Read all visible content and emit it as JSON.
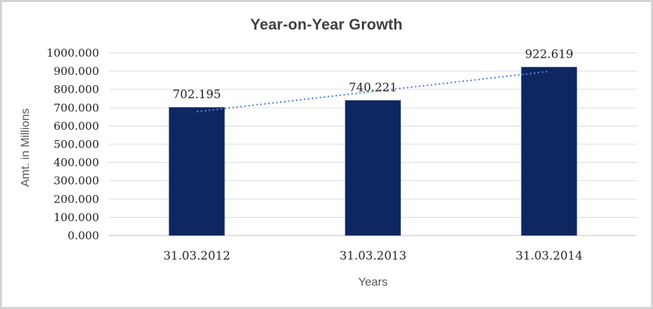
{
  "frame": {
    "border_color": "#D3D3D3",
    "background": "#FFFFFF"
  },
  "chart_data": {
    "type": "bar",
    "title": "Year-on-Year Growth",
    "xlabel": "Years",
    "ylabel": "Amt. in Millions",
    "categories": [
      "31.03.2012",
      "31.03.2013",
      "31.03.2014"
    ],
    "series": [
      {
        "name": "Amt. in Millions",
        "values": [
          702.195,
          740.221,
          922.619
        ]
      }
    ],
    "data_labels": [
      "702.195",
      "740.221",
      "922.619"
    ],
    "ylim": [
      0,
      1000
    ],
    "ytick_step": 100,
    "ytick_labels": [
      "0.000",
      "100.000",
      "200.000",
      "300.000",
      "400.000",
      "500.000",
      "600.000",
      "700.000",
      "800.000",
      "900.000",
      "1000.000"
    ],
    "grid": true,
    "legend": "none",
    "trendline": {
      "type": "linear",
      "style": "dotted",
      "color": "#5089D6"
    },
    "colors": {
      "bar": "#0E2760",
      "gridline": "#D9D9D9",
      "axis_line": "#BFBFBF",
      "tick_text": "#262626",
      "data_label_text": "#262626",
      "title_text": "#404040",
      "axis_title_text": "#595959"
    }
  }
}
